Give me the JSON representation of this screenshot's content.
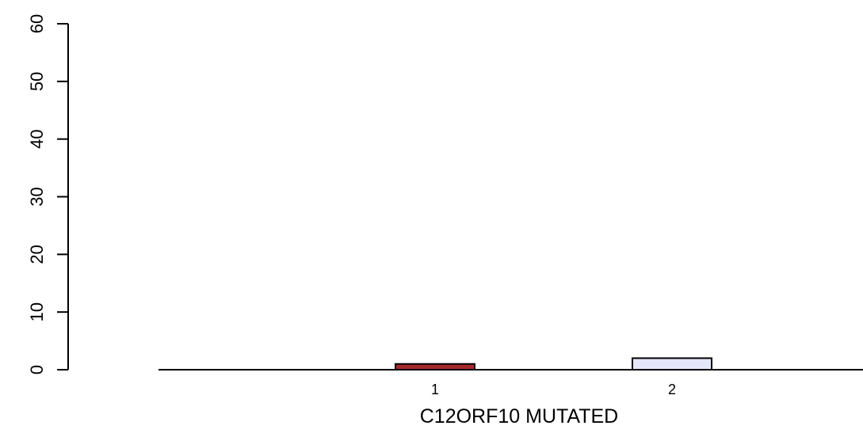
{
  "chart_data": {
    "type": "bar",
    "title": "",
    "xlabel": "C12ORF10 MUTATED",
    "ylabel": "",
    "categories": [
      "1",
      "2"
    ],
    "series": [
      {
        "values": [
          1,
          2
        ]
      }
    ],
    "bar_colors": [
      "#a52a2a",
      "#e6e6fa"
    ],
    "bar_border_color": "#000000",
    "ylim": [
      0,
      60
    ],
    "yticks": [
      "0",
      "10",
      "20",
      "30",
      "40",
      "50",
      "60"
    ],
    "grid": false,
    "legend": "none"
  }
}
